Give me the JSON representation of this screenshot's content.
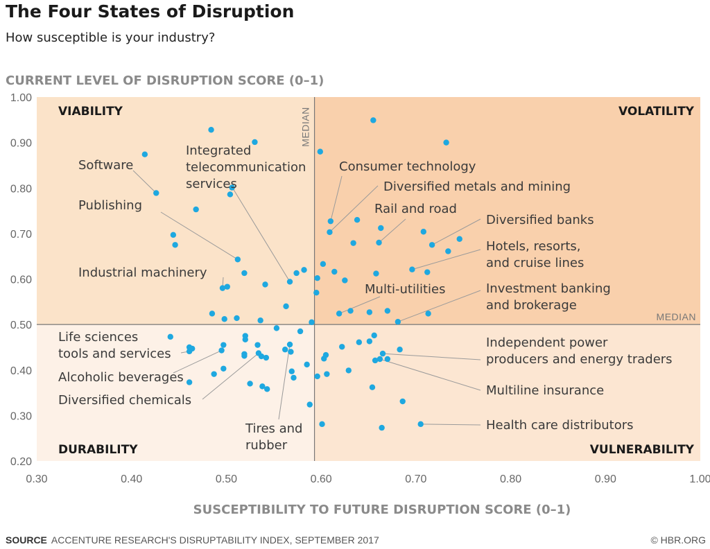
{
  "header": {
    "title": "The Four States of Disruption",
    "subtitle": "How susceptible is your industry?"
  },
  "footer": {
    "source_label": "SOURCE",
    "source_text": "ACCENTURE RESEARCH'S DISRUPTABILITY INDEX, SEPTEMBER 2017",
    "copyright": "© HBR.ORG"
  },
  "colors": {
    "viability": "#fbe3c9",
    "volatility": "#f9d0ac",
    "durability": "#fdf1e7",
    "vulnerability": "#fce6d2",
    "point": "#1ea8e0",
    "median_line": "#777777",
    "leader": "#9a9a9a"
  },
  "chart_data": {
    "type": "scatter",
    "title": "The Four States of Disruption",
    "subtitle": "How susceptible is your industry?",
    "xlabel": "SUSCEPTIBILITY TO FUTURE DISRUPTION SCORE (0–1)",
    "ylabel": "CURRENT LEVEL OF DISRUPTION SCORE (0–1)",
    "xlim": [
      0.3,
      1.0
    ],
    "ylim": [
      0.2,
      1.0
    ],
    "x_ticks": [
      "0.30",
      "0.40",
      "0.50",
      "0.60",
      "0.70",
      "0.80",
      "0.90",
      "1.00"
    ],
    "y_ticks": [
      "1.00",
      "0.90",
      "0.80",
      "0.70",
      "0.60",
      "0.50",
      "0.40",
      "0.30",
      "0.20"
    ],
    "median_x": 0.593,
    "median_y": 0.5,
    "median_x_label": "MEDIAN",
    "median_y_label": "MEDIAN",
    "grid": false,
    "quadrants": {
      "top_left": "VIABILITY",
      "top_right": "VOLATILITY",
      "bottom_left": "DURABILITY",
      "bottom_right": "VULNERABILITY"
    },
    "points": [
      {
        "x": 0.414,
        "y": 0.874
      },
      {
        "x": 0.426,
        "y": 0.789
      },
      {
        "x": 0.468,
        "y": 0.753
      },
      {
        "x": 0.444,
        "y": 0.697
      },
      {
        "x": 0.446,
        "y": 0.675
      },
      {
        "x": 0.484,
        "y": 0.928
      },
      {
        "x": 0.53,
        "y": 0.901
      },
      {
        "x": 0.506,
        "y": 0.801
      },
      {
        "x": 0.504,
        "y": 0.786
      },
      {
        "x": 0.512,
        "y": 0.643
      },
      {
        "x": 0.519,
        "y": 0.613
      },
      {
        "x": 0.496,
        "y": 0.58
      },
      {
        "x": 0.501,
        "y": 0.583
      },
      {
        "x": 0.541,
        "y": 0.588
      },
      {
        "x": 0.567,
        "y": 0.594
      },
      {
        "x": 0.574,
        "y": 0.613
      },
      {
        "x": 0.582,
        "y": 0.62
      },
      {
        "x": 0.563,
        "y": 0.54
      },
      {
        "x": 0.485,
        "y": 0.524
      },
      {
        "x": 0.498,
        "y": 0.512
      },
      {
        "x": 0.511,
        "y": 0.514
      },
      {
        "x": 0.536,
        "y": 0.509
      },
      {
        "x": 0.59,
        "y": 0.505
      },
      {
        "x": 0.553,
        "y": 0.492
      },
      {
        "x": 0.441,
        "y": 0.473
      },
      {
        "x": 0.461,
        "y": 0.45
      },
      {
        "x": 0.461,
        "y": 0.441
      },
      {
        "x": 0.464,
        "y": 0.447
      },
      {
        "x": 0.497,
        "y": 0.455
      },
      {
        "x": 0.495,
        "y": 0.443
      },
      {
        "x": 0.52,
        "y": 0.475
      },
      {
        "x": 0.52,
        "y": 0.467
      },
      {
        "x": 0.519,
        "y": 0.435
      },
      {
        "x": 0.519,
        "y": 0.431
      },
      {
        "x": 0.533,
        "y": 0.455
      },
      {
        "x": 0.534,
        "y": 0.437
      },
      {
        "x": 0.537,
        "y": 0.43
      },
      {
        "x": 0.542,
        "y": 0.427
      },
      {
        "x": 0.562,
        "y": 0.445
      },
      {
        "x": 0.567,
        "y": 0.456
      },
      {
        "x": 0.568,
        "y": 0.44
      },
      {
        "x": 0.578,
        "y": 0.485
      },
      {
        "x": 0.497,
        "y": 0.403
      },
      {
        "x": 0.487,
        "y": 0.391
      },
      {
        "x": 0.461,
        "y": 0.373
      },
      {
        "x": 0.525,
        "y": 0.37
      },
      {
        "x": 0.538,
        "y": 0.364
      },
      {
        "x": 0.543,
        "y": 0.358
      },
      {
        "x": 0.569,
        "y": 0.397
      },
      {
        "x": 0.571,
        "y": 0.383
      },
      {
        "x": 0.585,
        "y": 0.412
      },
      {
        "x": 0.588,
        "y": 0.324
      },
      {
        "x": 0.655,
        "y": 0.949
      },
      {
        "x": 0.732,
        "y": 0.9
      },
      {
        "x": 0.599,
        "y": 0.88
      },
      {
        "x": 0.61,
        "y": 0.727
      },
      {
        "x": 0.609,
        "y": 0.703
      },
      {
        "x": 0.638,
        "y": 0.73
      },
      {
        "x": 0.663,
        "y": 0.712
      },
      {
        "x": 0.634,
        "y": 0.679
      },
      {
        "x": 0.661,
        "y": 0.68
      },
      {
        "x": 0.708,
        "y": 0.704
      },
      {
        "x": 0.717,
        "y": 0.675
      },
      {
        "x": 0.734,
        "y": 0.661
      },
      {
        "x": 0.746,
        "y": 0.688
      },
      {
        "x": 0.602,
        "y": 0.633
      },
      {
        "x": 0.614,
        "y": 0.616
      },
      {
        "x": 0.596,
        "y": 0.602
      },
      {
        "x": 0.625,
        "y": 0.597
      },
      {
        "x": 0.595,
        "y": 0.57
      },
      {
        "x": 0.658,
        "y": 0.612
      },
      {
        "x": 0.696,
        "y": 0.621
      },
      {
        "x": 0.712,
        "y": 0.615
      },
      {
        "x": 0.619,
        "y": 0.524
      },
      {
        "x": 0.631,
        "y": 0.53
      },
      {
        "x": 0.651,
        "y": 0.527
      },
      {
        "x": 0.67,
        "y": 0.53
      },
      {
        "x": 0.681,
        "y": 0.506
      },
      {
        "x": 0.713,
        "y": 0.524
      },
      {
        "x": 0.656,
        "y": 0.476
      },
      {
        "x": 0.651,
        "y": 0.463
      },
      {
        "x": 0.64,
        "y": 0.461
      },
      {
        "x": 0.622,
        "y": 0.451
      },
      {
        "x": 0.605,
        "y": 0.433
      },
      {
        "x": 0.603,
        "y": 0.425
      },
      {
        "x": 0.683,
        "y": 0.445
      },
      {
        "x": 0.665,
        "y": 0.436
      },
      {
        "x": 0.662,
        "y": 0.424
      },
      {
        "x": 0.657,
        "y": 0.421
      },
      {
        "x": 0.67,
        "y": 0.424
      },
      {
        "x": 0.629,
        "y": 0.399
      },
      {
        "x": 0.606,
        "y": 0.391
      },
      {
        "x": 0.596,
        "y": 0.386
      },
      {
        "x": 0.654,
        "y": 0.362
      },
      {
        "x": 0.686,
        "y": 0.331
      },
      {
        "x": 0.601,
        "y": 0.281
      },
      {
        "x": 0.705,
        "y": 0.281
      },
      {
        "x": 0.664,
        "y": 0.273
      }
    ],
    "annotations": [
      {
        "lines": [
          "Software"
        ],
        "target": [
          0.426,
          0.789
        ]
      },
      {
        "lines": [
          "Publishing"
        ],
        "target": [
          0.512,
          0.643
        ]
      },
      {
        "lines": [
          "Integrated",
          "telecommunication",
          "services"
        ],
        "target": [
          0.567,
          0.594
        ]
      },
      {
        "lines": [
          "Industrial machinery"
        ],
        "target": [
          0.496,
          0.58
        ]
      },
      {
        "lines": [
          "Consumer technology"
        ],
        "target": [
          0.61,
          0.727
        ]
      },
      {
        "lines": [
          "Diversified metals and mining"
        ],
        "target": [
          0.609,
          0.703
        ]
      },
      {
        "lines": [
          "Rail and road"
        ],
        "target": [
          0.661,
          0.68
        ]
      },
      {
        "lines": [
          "Diversified banks"
        ],
        "target": [
          0.717,
          0.675
        ]
      },
      {
        "lines": [
          "Hotels, resorts,",
          "and cruise lines"
        ],
        "target": [
          0.696,
          0.621
        ]
      },
      {
        "lines": [
          "Multi-utilities"
        ],
        "target": [
          0.619,
          0.524
        ]
      },
      {
        "lines": [
          "Investment banking",
          "and brokerage"
        ],
        "target": [
          0.681,
          0.506
        ]
      },
      {
        "lines": [
          "Life sciences",
          "tools and services"
        ],
        "target": [
          0.461,
          0.441
        ]
      },
      {
        "lines": [
          "Alcoholic beverages"
        ],
        "target": [
          0.495,
          0.443
        ]
      },
      {
        "lines": [
          "Diversified chemicals"
        ],
        "target": [
          0.534,
          0.437
        ]
      },
      {
        "lines": [
          "Tires and",
          "rubber"
        ],
        "target": [
          0.567,
          0.456
        ]
      },
      {
        "lines": [
          "Independent power",
          "producers and energy traders"
        ],
        "target": [
          0.665,
          0.436
        ]
      },
      {
        "lines": [
          "Multiline insurance"
        ],
        "target": [
          0.662,
          0.424
        ]
      },
      {
        "lines": [
          "Health care distributors"
        ],
        "target": [
          0.705,
          0.281
        ]
      }
    ]
  }
}
